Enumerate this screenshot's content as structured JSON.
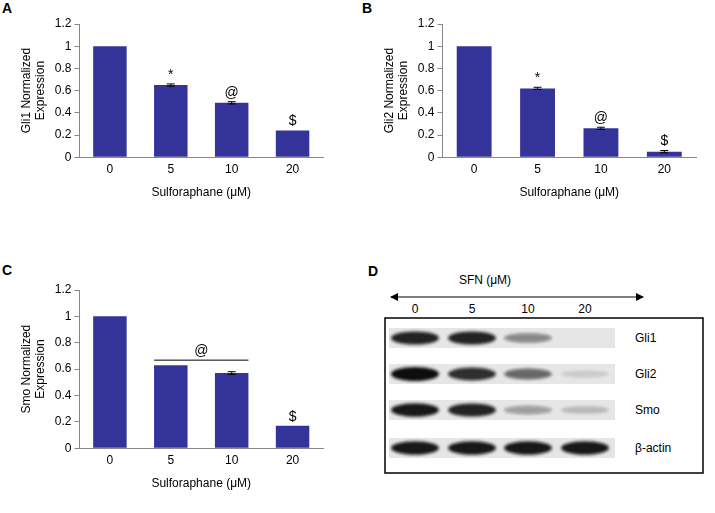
{
  "chart_data": [
    {
      "panel": "A",
      "type": "bar",
      "categories": [
        "0",
        "5",
        "10",
        "20"
      ],
      "values": [
        1,
        0.65,
        0.49,
        0.24
      ],
      "errors": [
        0,
        0.01,
        0.01,
        0
      ],
      "color": "#333399",
      "x_label": "Sulforaphane (μM)",
      "y_label": [
        "Gli1 Normalized",
        "Expression"
      ],
      "ylim": [
        0,
        1.2
      ],
      "yticks": [
        0,
        0.2,
        0.4,
        0.6,
        0.8,
        1,
        1.2
      ],
      "grid": false,
      "annotations": [
        {
          "text": "*",
          "categories": [
            "5"
          ]
        },
        {
          "text": "@",
          "categories": [
            "10"
          ]
        },
        {
          "text": "$",
          "categories": [
            "20"
          ]
        }
      ]
    },
    {
      "panel": "B",
      "type": "bar",
      "categories": [
        "0",
        "5",
        "10",
        "20"
      ],
      "values": [
        1,
        0.62,
        0.26,
        0.05
      ],
      "errors": [
        0,
        0.01,
        0.01,
        0.01
      ],
      "color": "#333399",
      "x_label": "Sulforaphane (μM)",
      "y_label": [
        "Gli2 Normalized",
        "Expression"
      ],
      "ylim": [
        0,
        1.2
      ],
      "yticks": [
        0,
        0.2,
        0.4,
        0.6,
        0.8,
        1,
        1.2
      ],
      "grid": false,
      "annotations": [
        {
          "text": "*",
          "categories": [
            "5"
          ]
        },
        {
          "text": "@",
          "categories": [
            "10"
          ]
        },
        {
          "text": "$",
          "categories": [
            "20"
          ]
        }
      ]
    },
    {
      "panel": "C",
      "type": "bar",
      "categories": [
        "0",
        "5",
        "10",
        "20"
      ],
      "values": [
        1,
        0.63,
        0.57,
        0.17
      ],
      "errors": [
        0,
        0,
        0.01,
        0
      ],
      "color": "#333399",
      "x_label": "Sulforaphane (μM)",
      "y_label": [
        "Smo Normalized",
        "Expression"
      ],
      "ylim": [
        0,
        1.2
      ],
      "yticks": [
        0,
        0.2,
        0.4,
        0.6,
        0.8,
        1,
        1.2
      ],
      "grid": false,
      "annotations": [
        {
          "text": "@",
          "categories": [
            "5",
            "10"
          ]
        },
        {
          "text": "$",
          "categories": [
            "20"
          ]
        }
      ]
    }
  ],
  "blot": {
    "panel": "D",
    "treatment_label": "SFN (μM)",
    "lanes": [
      "0",
      "5",
      "10",
      "20"
    ],
    "bands": [
      {
        "label": "Gli1",
        "intensity": [
          0.9,
          0.9,
          0.45,
          0
        ]
      },
      {
        "label": "Gli2",
        "intensity": [
          1,
          0.85,
          0.6,
          0.12
        ]
      },
      {
        "label": "Smo",
        "intensity": [
          0.95,
          0.9,
          0.35,
          0.2
        ]
      },
      {
        "label": "β-actin",
        "intensity": [
          0.95,
          0.95,
          0.95,
          0.95
        ]
      }
    ]
  }
}
